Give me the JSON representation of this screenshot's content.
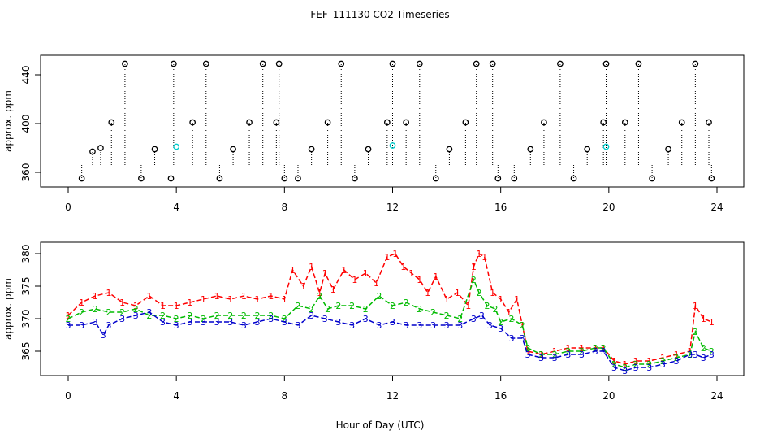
{
  "title": "FEF_111130  CO2 Timeseries",
  "xlabel": "Hour of Day (UTC)",
  "colors": {
    "series1": "#ff0000",
    "series2": "#00bb00",
    "series3": "#0000cc",
    "black": "#000000",
    "cyan": "#00cccc"
  },
  "chart_data": [
    {
      "type": "scatter",
      "ylabel": "approx. ppm",
      "xlim": [
        0,
        24
      ],
      "ylim": [
        352,
        452
      ],
      "xticks": [
        0,
        4,
        8,
        12,
        16,
        20,
        24
      ],
      "yticks": [
        360,
        400,
        440
      ],
      "grid": false,
      "series": [
        {
          "symbol": "o",
          "color": "#000000",
          "x": [
            0.5,
            0.9,
            1.2,
            1.6,
            2.1,
            2.7,
            3.2,
            3.8,
            3.9,
            4.6,
            5.1,
            5.6,
            6.1,
            6.7,
            7.2,
            7.7,
            7.8,
            8.0,
            8.5,
            9.0,
            9.6,
            10.1,
            10.6,
            11.1,
            11.8,
            12.0,
            12.5,
            13.0,
            13.6,
            14.1,
            14.7,
            15.1,
            15.7,
            15.9,
            16.5,
            17.1,
            17.6,
            18.2,
            18.7,
            19.2,
            19.8,
            19.9,
            20.6,
            21.1,
            21.6,
            22.2,
            22.7,
            23.2,
            23.7,
            23.8
          ],
          "y": [
            355,
            377,
            380,
            401,
            449,
            355,
            379,
            355,
            449,
            401,
            449,
            355,
            379,
            401,
            449,
            401,
            449,
            355,
            355,
            379,
            401,
            449,
            355,
            379,
            401,
            449,
            401,
            449,
            355,
            379,
            401,
            449,
            449,
            355,
            355,
            379,
            401,
            449,
            355,
            379,
            401,
            449,
            401,
            449,
            355,
            379,
            401,
            449,
            401,
            355
          ]
        },
        {
          "symbol": "o",
          "color": "#00cccc",
          "x": [
            4.0,
            12.0,
            19.9
          ],
          "y": [
            381,
            382,
            381
          ]
        }
      ]
    },
    {
      "type": "line",
      "ylabel": "approx. ppm",
      "xlim": [
        0,
        24
      ],
      "ylim": [
        362,
        381
      ],
      "xticks": [
        0,
        4,
        8,
        12,
        16,
        20,
        24
      ],
      "yticks": [
        365,
        370,
        375,
        380
      ],
      "grid": false,
      "series": [
        {
          "symbol": "1",
          "color": "#ff0000",
          "x": [
            0.0,
            0.5,
            1.0,
            1.5,
            2.0,
            2.5,
            3.0,
            3.5,
            4.0,
            4.5,
            5.0,
            5.5,
            6.0,
            6.5,
            7.0,
            7.5,
            8.0,
            8.3,
            8.7,
            9.0,
            9.3,
            9.5,
            9.8,
            10.2,
            10.6,
            11.0,
            11.4,
            11.8,
            12.1,
            12.4,
            12.7,
            13.0,
            13.3,
            13.6,
            14.0,
            14.4,
            14.8,
            15.0,
            15.2,
            15.4,
            15.7,
            16.0,
            16.3,
            16.6,
            16.8,
            17.0,
            17.5,
            18.0,
            18.5,
            19.0,
            19.5,
            19.8,
            20.2,
            20.6,
            21.0,
            21.5,
            22.0,
            22.5,
            23.0,
            23.2,
            23.5,
            23.8
          ],
          "y": [
            370.5,
            372.5,
            373.5,
            374.0,
            372.5,
            372.0,
            373.5,
            372.0,
            372.0,
            372.5,
            373.0,
            373.5,
            373.0,
            373.5,
            373.0,
            373.5,
            373.0,
            377.5,
            375.0,
            378.0,
            374.0,
            377.0,
            374.5,
            377.5,
            376.0,
            377.0,
            375.5,
            379.5,
            380.0,
            378.0,
            377.0,
            376.0,
            374.0,
            376.5,
            373.0,
            374.0,
            372.0,
            378.0,
            380.0,
            379.5,
            374.0,
            373.0,
            371.0,
            373.0,
            369.0,
            365.0,
            364.5,
            365.0,
            365.5,
            365.5,
            365.5,
            365.5,
            363.5,
            363.0,
            363.5,
            363.5,
            364.0,
            364.5,
            365.0,
            372.0,
            370.0,
            369.5
          ]
        },
        {
          "symbol": "2",
          "color": "#00bb00",
          "x": [
            0.0,
            0.5,
            1.0,
            1.5,
            2.0,
            2.5,
            3.0,
            3.5,
            4.0,
            4.5,
            5.0,
            5.5,
            6.0,
            6.5,
            7.0,
            7.5,
            8.0,
            8.5,
            9.0,
            9.3,
            9.6,
            10.0,
            10.5,
            11.0,
            11.5,
            12.0,
            12.5,
            13.0,
            13.5,
            14.0,
            14.5,
            15.0,
            15.2,
            15.5,
            15.8,
            16.0,
            16.4,
            16.8,
            17.0,
            17.5,
            18.0,
            18.5,
            19.0,
            19.5,
            19.8,
            20.2,
            20.6,
            21.0,
            21.5,
            22.0,
            22.5,
            23.0,
            23.2,
            23.5,
            23.8
          ],
          "y": [
            370.0,
            371.0,
            371.5,
            371.0,
            371.0,
            371.5,
            370.5,
            370.5,
            370.0,
            370.5,
            370.0,
            370.5,
            370.5,
            370.5,
            370.5,
            370.5,
            370.0,
            372.0,
            371.5,
            373.5,
            371.5,
            372.0,
            372.0,
            371.5,
            373.5,
            372.0,
            372.5,
            371.5,
            371.0,
            370.5,
            370.0,
            376.0,
            374.0,
            372.0,
            371.5,
            369.5,
            370.0,
            369.0,
            365.5,
            364.5,
            364.5,
            365.0,
            365.0,
            365.5,
            365.5,
            363.0,
            362.5,
            363.0,
            363.0,
            363.5,
            364.0,
            364.5,
            368.0,
            365.5,
            365.0
          ]
        },
        {
          "symbol": "3",
          "color": "#0000cc",
          "x": [
            0.0,
            0.5,
            1.0,
            1.3,
            1.5,
            2.0,
            2.5,
            3.0,
            3.5,
            4.0,
            4.5,
            5.0,
            5.5,
            6.0,
            6.5,
            7.0,
            7.5,
            8.0,
            8.5,
            9.0,
            9.5,
            10.0,
            10.5,
            11.0,
            11.5,
            12.0,
            12.5,
            13.0,
            13.5,
            14.0,
            14.5,
            15.0,
            15.3,
            15.6,
            16.0,
            16.4,
            16.8,
            17.0,
            17.5,
            18.0,
            18.5,
            19.0,
            19.5,
            19.8,
            20.2,
            20.6,
            21.0,
            21.5,
            22.0,
            22.5,
            23.0,
            23.2,
            23.5,
            23.8
          ],
          "y": [
            369.0,
            369.0,
            369.5,
            367.5,
            369.0,
            370.0,
            370.5,
            371.0,
            369.5,
            369.0,
            369.5,
            369.5,
            369.5,
            369.5,
            369.0,
            369.5,
            370.0,
            369.5,
            369.0,
            370.5,
            370.0,
            369.5,
            369.0,
            370.0,
            369.0,
            369.5,
            369.0,
            369.0,
            369.0,
            369.0,
            369.0,
            370.0,
            370.5,
            369.0,
            368.5,
            367.0,
            367.0,
            364.5,
            364.0,
            364.0,
            364.5,
            364.5,
            365.0,
            365.0,
            362.5,
            362.0,
            362.5,
            362.5,
            363.0,
            363.5,
            364.5,
            364.5,
            364.0,
            364.5
          ]
        }
      ]
    }
  ]
}
